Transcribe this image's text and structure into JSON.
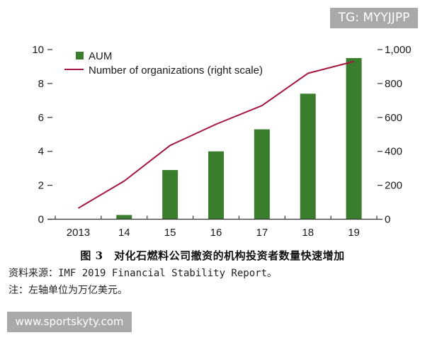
{
  "watermarks": {
    "top_right": "TG: MYYJJPP",
    "bottom_left": "www.sportskyty.com"
  },
  "caption": {
    "title": "图 3　对化石燃料公司撤资的机构投资者数量快速增加",
    "source": "资料来源：IMF 2019 Financial Stability Report。",
    "note": "注：左轴单位为万亿美元。"
  },
  "colors": {
    "bar": "#3a7d2c",
    "line": "#a3173f",
    "axis": "#333333"
  },
  "chart_data": {
    "type": "bar",
    "title": "",
    "categories": [
      "2013",
      "14",
      "15",
      "16",
      "17",
      "18",
      "19"
    ],
    "series": [
      {
        "name": "AUM",
        "type": "bar",
        "axis": "left",
        "values": [
          0.02,
          0.25,
          2.9,
          4.0,
          5.3,
          7.4,
          9.5
        ]
      },
      {
        "name": "Number of organizations (right scale)",
        "type": "line",
        "axis": "right",
        "values": [
          65,
          225,
          435,
          560,
          670,
          860,
          930
        ]
      }
    ],
    "xlabel": "",
    "ylabel": "",
    "ylabel_right": "",
    "ylim": [
      0,
      10
    ],
    "ylim_right": [
      0,
      1000
    ],
    "yticks": [
      "0",
      "2",
      "4",
      "6",
      "8",
      "10"
    ],
    "yticks_right": [
      "0",
      "200",
      "400",
      "600",
      "800",
      "1,000"
    ],
    "grid": false,
    "legend": {
      "position": "top-left",
      "entries": [
        "AUM",
        "Number of organizations (right scale)"
      ]
    }
  }
}
